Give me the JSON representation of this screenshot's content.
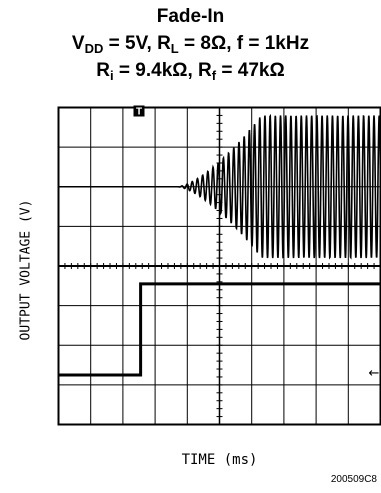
{
  "chart_data": {
    "type": "line",
    "title": {
      "line1": "Fade-In",
      "line2_parts": [
        "V",
        "DD",
        " = 5V, R",
        "L",
        " = 8Ω, f = 1kHz"
      ],
      "line3_parts": [
        "R",
        "i",
        " = 9.4kΩ, R",
        "f",
        " = 47kΩ"
      ]
    },
    "xlabel": "TIME (ms)",
    "ylabel": "OUTPUT VOLTAGE (V)",
    "grid": true,
    "divisions": {
      "x": 10,
      "y": 8
    },
    "trigger_marker": "T",
    "trigger_division": 2.5,
    "series": [
      {
        "role": "output-envelope",
        "baseline_div": 2.0,
        "onset_div": 3.7,
        "full_div": 6.3,
        "max_amplitude_div": 1.8,
        "cycles": 62
      },
      {
        "role": "control-step",
        "low_div": 6.75,
        "high_div": 4.45,
        "step_div": 2.55
      }
    ],
    "right_marker": "←"
  },
  "figure_id": "200509C8"
}
